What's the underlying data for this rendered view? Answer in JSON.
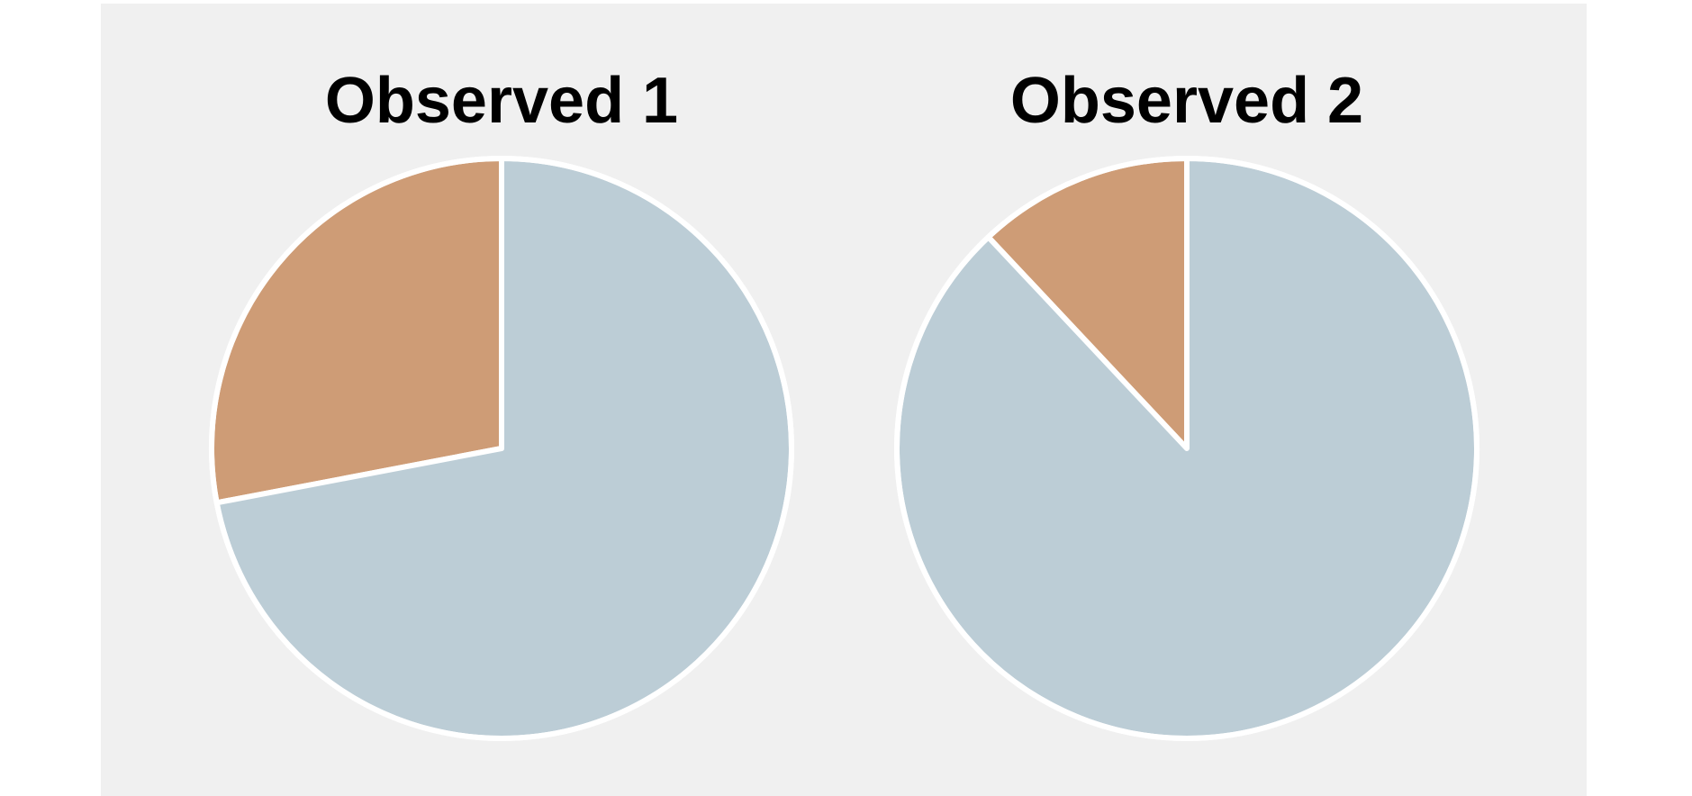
{
  "chart_data": [
    {
      "type": "pie",
      "title": "Observed 1",
      "slices": [
        {
          "value": 72,
          "color": "#bccdd6"
        },
        {
          "value": 28,
          "color": "#ce9c76"
        }
      ]
    },
    {
      "type": "pie",
      "title": "Observed 2",
      "slices": [
        {
          "value": 88,
          "color": "#bccdd6"
        },
        {
          "value": 12,
          "color": "#ce9c76"
        }
      ]
    }
  ],
  "colors": {
    "background": "#f0f0f0",
    "slice_edge": "#ffffff"
  }
}
